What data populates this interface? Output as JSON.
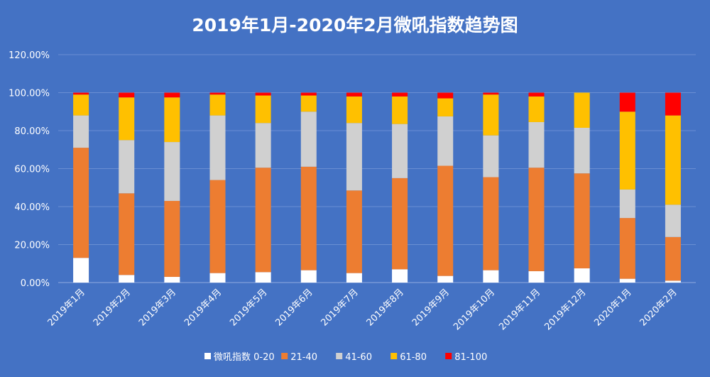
{
  "chart_data": {
    "type": "bar",
    "stacked": true,
    "title": "2019年1月-2020年2月微吼指数趋势图",
    "xlabel": "",
    "ylabel": "",
    "ylim": [
      0,
      1.2
    ],
    "yticks": [
      "0.00%",
      "20.00%",
      "40.00%",
      "60.00%",
      "80.00%",
      "100.00%",
      "120.00%"
    ],
    "grid": true,
    "legend_position": "bottom",
    "categories": [
      "2019年1月",
      "2019年2月",
      "2019年3月",
      "2019年4月",
      "2019年5月",
      "2019年6月",
      "2019年7月",
      "2019年8月",
      "2019年9月",
      "2019年10月",
      "2019年11月",
      "2019年12月",
      "2020年1月",
      "2020年2月"
    ],
    "series": [
      {
        "name": "微吼指数 0-20",
        "color": "#FFFFFF",
        "values": [
          0.13,
          0.04,
          0.03,
          0.05,
          0.055,
          0.065,
          0.05,
          0.07,
          0.035,
          0.065,
          0.06,
          0.075,
          0.02,
          0.01
        ]
      },
      {
        "name": "21-40",
        "color": "#ED7D31",
        "values": [
          0.58,
          0.43,
          0.4,
          0.49,
          0.55,
          0.545,
          0.435,
          0.48,
          0.58,
          0.49,
          0.545,
          0.5,
          0.32,
          0.23
        ]
      },
      {
        "name": "41-60",
        "color": "#D0D0D0",
        "values": [
          0.17,
          0.28,
          0.31,
          0.34,
          0.235,
          0.29,
          0.355,
          0.285,
          0.26,
          0.22,
          0.24,
          0.24,
          0.15,
          0.17
        ]
      },
      {
        "name": "61-80",
        "color": "#FFC000",
        "values": [
          0.11,
          0.225,
          0.235,
          0.11,
          0.145,
          0.085,
          0.14,
          0.145,
          0.095,
          0.215,
          0.135,
          0.185,
          0.41,
          0.47
        ]
      },
      {
        "name": "81-100",
        "color": "#FF0000",
        "values": [
          0.01,
          0.025,
          0.025,
          0.01,
          0.015,
          0.015,
          0.02,
          0.02,
          0.03,
          0.01,
          0.02,
          0.0,
          0.1,
          0.12
        ]
      }
    ]
  }
}
